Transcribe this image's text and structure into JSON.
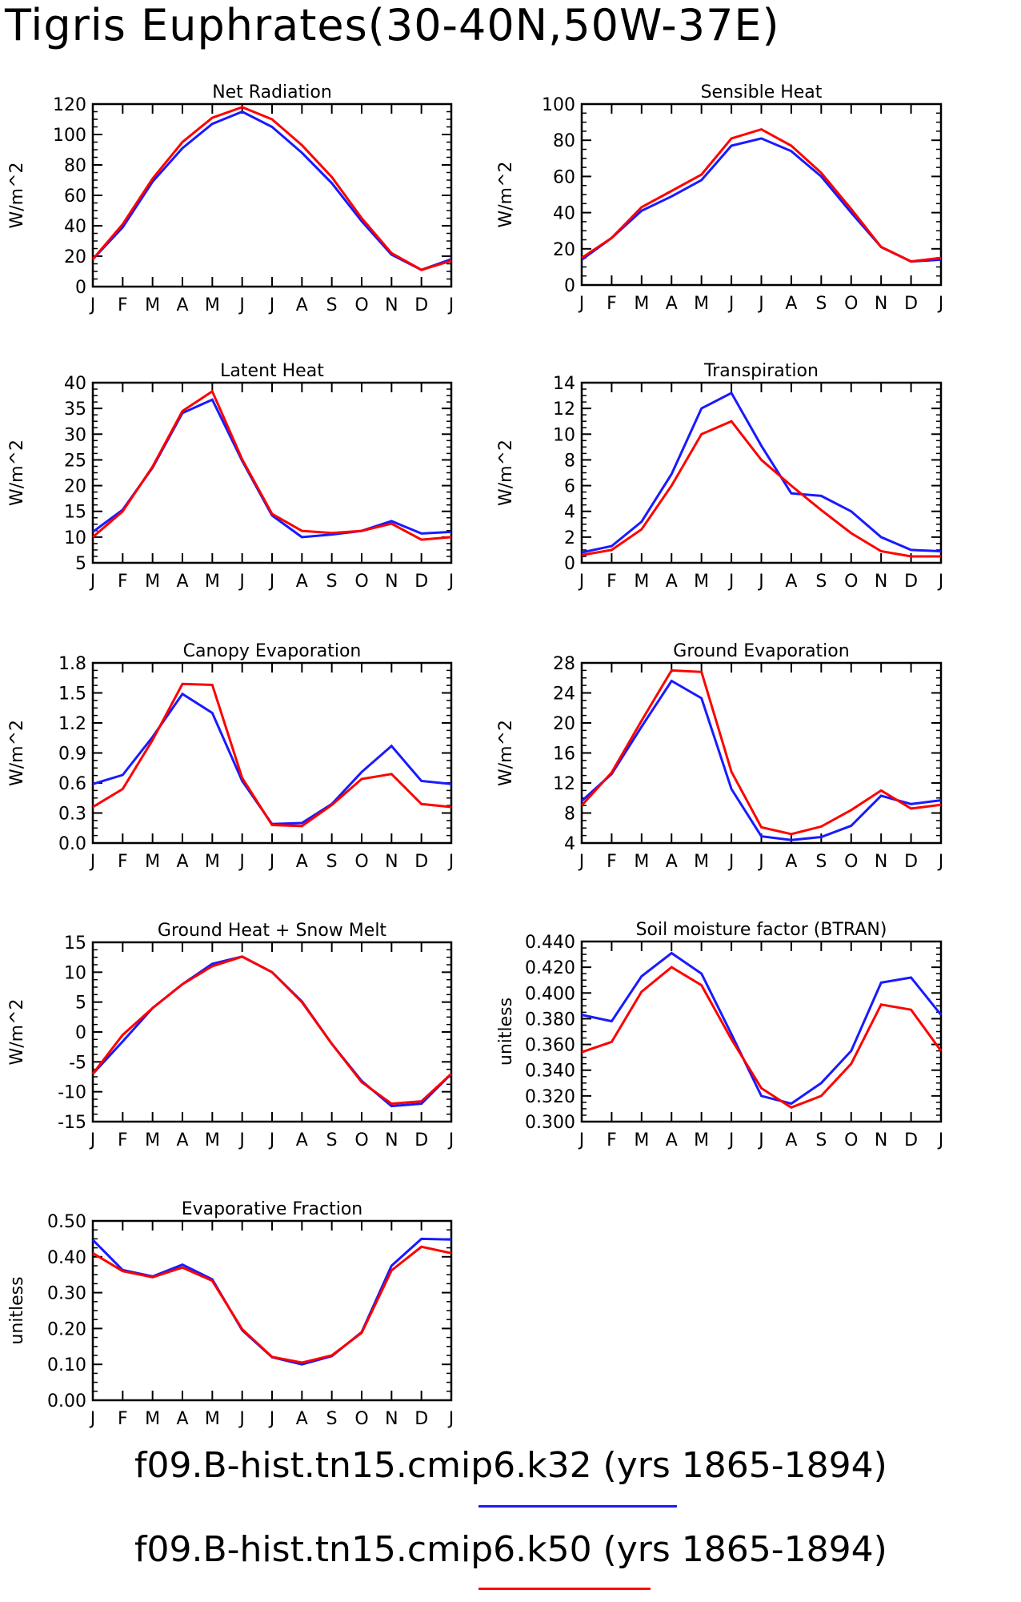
{
  "page": {
    "title": "Tigris Euphrates(30-40N,50W-37E)"
  },
  "colors": {
    "series_a": "#1a1aff",
    "series_b": "#ff0000"
  },
  "months": [
    "J",
    "F",
    "M",
    "A",
    "M",
    "J",
    "J",
    "A",
    "S",
    "O",
    "N",
    "D",
    "J"
  ],
  "legend": [
    {
      "text": "f09.B-hist.tn15.cmip6.k32 (yrs 1865-1894)",
      "color": "#1a1aff"
    },
    {
      "text": "f09.B-hist.tn15.cmip6.k50 (yrs 1865-1894)",
      "color": "#ff0000"
    }
  ],
  "chart_data": [
    {
      "type": "line",
      "title": "Net Radiation",
      "ylabel": "W/m^2",
      "ylim": [
        0,
        120
      ],
      "yticks": [
        0,
        20,
        40,
        60,
        80,
        100,
        120
      ],
      "ytick_labels": [
        "0",
        "20",
        "40",
        "60",
        "80",
        "100",
        "120"
      ],
      "series": [
        {
          "values": [
            18,
            39,
            69,
            91,
            107,
            115,
            105,
            88,
            68,
            43,
            21,
            11,
            18
          ]
        },
        {
          "values": [
            18,
            41,
            71,
            95,
            111,
            118,
            110,
            93,
            72,
            45,
            22,
            11,
            17
          ]
        }
      ]
    },
    {
      "type": "line",
      "title": "Sensible Heat",
      "ylabel": "W/m^2",
      "ylim": [
        0,
        100
      ],
      "yticks": [
        0,
        20,
        40,
        60,
        80,
        100
      ],
      "ytick_labels": [
        "0",
        "20",
        "40",
        "60",
        "80",
        "100"
      ],
      "series": [
        {
          "values": [
            14,
            26,
            41,
            49,
            58,
            77,
            81,
            74,
            60,
            40,
            21,
            13,
            14
          ]
        },
        {
          "values": [
            15,
            26,
            43,
            52,
            61,
            81,
            86,
            77,
            62,
            42,
            21,
            13,
            15
          ]
        }
      ]
    },
    {
      "type": "line",
      "title": "Latent Heat",
      "ylabel": "W/m^2",
      "ylim": [
        5,
        40
      ],
      "yticks": [
        5,
        10,
        15,
        20,
        25,
        30,
        35,
        40
      ],
      "ytick_labels": [
        "5",
        "10",
        "15",
        "20",
        "25",
        "30",
        "35",
        "40"
      ],
      "series": [
        {
          "values": [
            11,
            15.3,
            23.5,
            34.1,
            36.7,
            24.8,
            14.2,
            10,
            10.5,
            11.2,
            13.1,
            10.7,
            11
          ]
        },
        {
          "values": [
            10,
            15,
            23.7,
            34.5,
            38.3,
            25.1,
            14.5,
            11.2,
            10.8,
            11.2,
            12.6,
            9.5,
            10
          ]
        }
      ]
    },
    {
      "type": "line",
      "title": "Transpiration",
      "ylabel": "W/m^2",
      "ylim": [
        0,
        14
      ],
      "yticks": [
        0,
        2,
        4,
        6,
        8,
        10,
        12,
        14
      ],
      "ytick_labels": [
        "0",
        "2",
        "4",
        "6",
        "8",
        "10",
        "12",
        "14"
      ],
      "series": [
        {
          "values": [
            0.8,
            1.3,
            3.2,
            6.9,
            12.0,
            13.2,
            9.1,
            5.4,
            5.2,
            4.0,
            2.0,
            1.0,
            0.9
          ]
        },
        {
          "values": [
            0.6,
            1.0,
            2.6,
            6.0,
            10.0,
            11.0,
            8.0,
            6.0,
            4.1,
            2.3,
            0.9,
            0.5,
            0.5
          ]
        }
      ]
    },
    {
      "type": "line",
      "title": "Canopy Evaporation",
      "ylabel": "W/m^2",
      "ylim": [
        0,
        1.8
      ],
      "yticks": [
        0,
        0.3,
        0.6,
        0.9,
        1.2,
        1.5,
        1.8
      ],
      "ytick_labels": [
        "0.0",
        "0.3",
        "0.6",
        "0.9",
        "1.2",
        "1.5",
        "1.8"
      ],
      "series": [
        {
          "values": [
            0.59,
            0.68,
            1.06,
            1.49,
            1.3,
            0.62,
            0.19,
            0.2,
            0.39,
            0.71,
            0.97,
            0.62,
            0.59
          ]
        },
        {
          "values": [
            0.36,
            0.54,
            1.03,
            1.59,
            1.58,
            0.65,
            0.18,
            0.17,
            0.38,
            0.64,
            0.69,
            0.39,
            0.36
          ]
        }
      ]
    },
    {
      "type": "line",
      "title": "Ground Evaporation",
      "ylabel": "W/m^2",
      "ylim": [
        4,
        28
      ],
      "yticks": [
        4,
        8,
        12,
        16,
        20,
        24,
        28
      ],
      "ytick_labels": [
        "4",
        "8",
        "12",
        "16",
        "20",
        "24",
        "28"
      ],
      "series": [
        {
          "values": [
            9.6,
            13.2,
            19.5,
            25.6,
            23.3,
            11.2,
            4.9,
            4.4,
            4.8,
            6.3,
            10.3,
            9.2,
            9.7
          ]
        },
        {
          "values": [
            9.0,
            13.4,
            20.3,
            27.0,
            26.8,
            13.5,
            6.1,
            5.2,
            6.2,
            8.4,
            11.0,
            8.6,
            9.1
          ]
        }
      ]
    },
    {
      "type": "line",
      "title": "Ground Heat + Snow Melt",
      "ylabel": "W/m^2",
      "ylim": [
        -15,
        15
      ],
      "yticks": [
        -15,
        -10,
        -5,
        0,
        5,
        10,
        15
      ],
      "ytick_labels": [
        "-15",
        "-10",
        "-5",
        "0",
        "5",
        "10",
        "15"
      ],
      "series": [
        {
          "values": [
            -7,
            -1.6,
            4,
            8,
            11.4,
            12.6,
            10,
            5.1,
            -2,
            -8.2,
            -12.4,
            -12,
            -7
          ]
        },
        {
          "values": [
            -7,
            -0.5,
            4,
            8,
            11,
            12.6,
            10,
            5,
            -2,
            -8.4,
            -12,
            -11.6,
            -7
          ]
        }
      ]
    },
    {
      "type": "line",
      "title": "Soil moisture factor (BTRAN)",
      "ylabel": "unitless",
      "ylim": [
        0.3,
        0.44
      ],
      "yticks": [
        0.3,
        0.32,
        0.34,
        0.36,
        0.38,
        0.4,
        0.42,
        0.44
      ],
      "ytick_labels": [
        "0.300",
        "0.320",
        "0.340",
        "0.360",
        "0.380",
        "0.400",
        "0.420",
        "0.440"
      ],
      "series": [
        {
          "values": [
            0.383,
            0.378,
            0.413,
            0.431,
            0.415,
            0.368,
            0.32,
            0.314,
            0.33,
            0.355,
            0.408,
            0.412,
            0.383
          ]
        },
        {
          "values": [
            0.354,
            0.362,
            0.401,
            0.42,
            0.406,
            0.364,
            0.326,
            0.311,
            0.32,
            0.345,
            0.391,
            0.387,
            0.355
          ]
        }
      ]
    },
    {
      "type": "line",
      "title": "Evaporative Fraction",
      "ylabel": "unitless",
      "ylim": [
        0,
        0.5
      ],
      "yticks": [
        0,
        0.1,
        0.2,
        0.3,
        0.4,
        0.5
      ],
      "ytick_labels": [
        "0.00",
        "0.10",
        "0.20",
        "0.30",
        "0.40",
        "0.50"
      ],
      "series": [
        {
          "values": [
            0.447,
            0.363,
            0.345,
            0.378,
            0.337,
            0.195,
            0.12,
            0.1,
            0.123,
            0.19,
            0.375,
            0.45,
            0.448
          ]
        },
        {
          "values": [
            0.41,
            0.36,
            0.343,
            0.37,
            0.333,
            0.198,
            0.121,
            0.105,
            0.125,
            0.188,
            0.362,
            0.428,
            0.41
          ]
        }
      ]
    }
  ]
}
